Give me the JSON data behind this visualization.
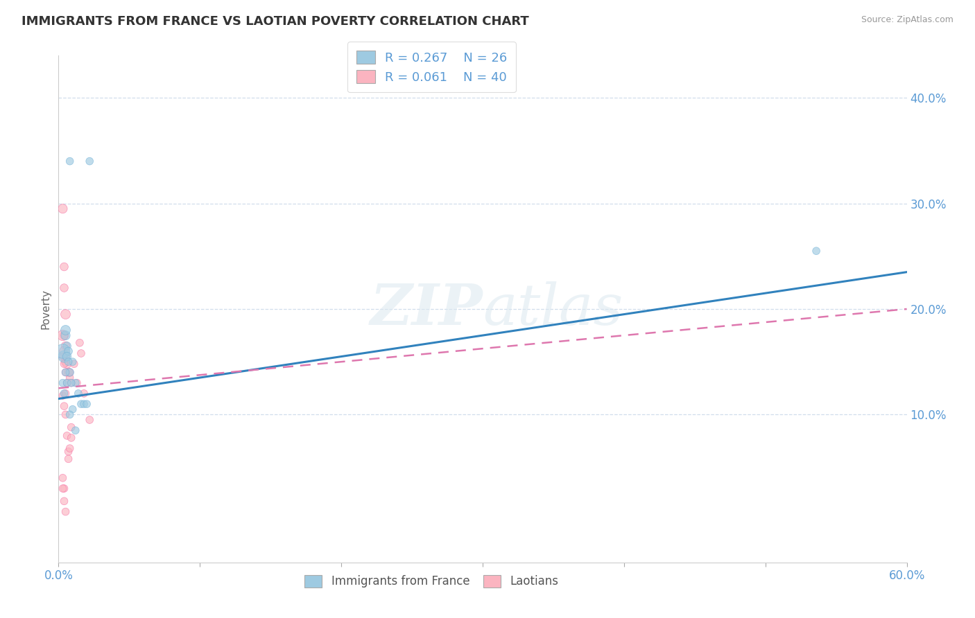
{
  "title": "IMMIGRANTS FROM FRANCE VS LAOTIAN POVERTY CORRELATION CHART",
  "source": "Source: ZipAtlas.com",
  "ylabel": "Poverty",
  "xlim": [
    0.0,
    0.6
  ],
  "ylim": [
    -0.04,
    0.44
  ],
  "yticks": [
    0.1,
    0.2,
    0.3,
    0.4
  ],
  "ytick_labels": [
    "10.0%",
    "20.0%",
    "30.0%",
    "40.0%"
  ],
  "xticks": [
    0.0,
    0.1,
    0.2,
    0.3,
    0.4,
    0.5,
    0.6
  ],
  "xtick_labels": [
    "0.0%",
    "",
    "",
    "",
    "",
    "",
    "60.0%"
  ],
  "color_france": "#9ecae1",
  "color_france_edge": "#6baed6",
  "color_laotian": "#fbb4c0",
  "color_laotian_edge": "#f768a1",
  "color_france_line": "#3182bd",
  "color_laotian_line": "#de77ae",
  "france_line_start_y": 0.115,
  "france_line_end_y": 0.235,
  "laotian_line_start_y": 0.125,
  "laotian_line_end_y": 0.2,
  "france_x": [
    0.008,
    0.022,
    0.004,
    0.006,
    0.003,
    0.005,
    0.007,
    0.005,
    0.006,
    0.008,
    0.01,
    0.012,
    0.014,
    0.016,
    0.018,
    0.02,
    0.003,
    0.004,
    0.006,
    0.007,
    0.009,
    0.01,
    0.008,
    0.536,
    0.012,
    0.005
  ],
  "france_y": [
    0.34,
    0.34,
    0.155,
    0.165,
    0.16,
    0.175,
    0.16,
    0.18,
    0.155,
    0.14,
    0.15,
    0.13,
    0.12,
    0.11,
    0.11,
    0.11,
    0.13,
    0.12,
    0.13,
    0.15,
    0.13,
    0.105,
    0.1,
    0.255,
    0.085,
    0.14
  ],
  "france_sizes": [
    60,
    60,
    150,
    70,
    220,
    90,
    70,
    100,
    80,
    70,
    60,
    60,
    60,
    60,
    60,
    60,
    60,
    60,
    60,
    60,
    60,
    60,
    60,
    60,
    60,
    60
  ],
  "laotian_x": [
    0.003,
    0.004,
    0.004,
    0.005,
    0.004,
    0.003,
    0.005,
    0.004,
    0.005,
    0.005,
    0.006,
    0.007,
    0.008,
    0.009,
    0.013,
    0.018,
    0.022,
    0.003,
    0.004,
    0.005,
    0.005,
    0.006,
    0.007,
    0.003,
    0.004,
    0.005,
    0.006,
    0.007,
    0.008,
    0.009,
    0.009,
    0.004,
    0.004,
    0.005,
    0.015,
    0.016,
    0.011,
    0.008,
    0.003,
    0.003
  ],
  "laotian_y": [
    0.295,
    0.24,
    0.22,
    0.195,
    0.175,
    0.175,
    0.165,
    0.16,
    0.155,
    0.15,
    0.148,
    0.14,
    0.135,
    0.13,
    0.13,
    0.12,
    0.095,
    0.118,
    0.108,
    0.12,
    0.1,
    0.08,
    0.065,
    0.155,
    0.148,
    0.14,
    0.13,
    0.058,
    0.068,
    0.078,
    0.088,
    0.03,
    0.018,
    0.008,
    0.168,
    0.158,
    0.148,
    0.14,
    0.03,
    0.04
  ],
  "laotian_sizes": [
    90,
    70,
    70,
    100,
    80,
    120,
    80,
    100,
    80,
    80,
    80,
    80,
    60,
    60,
    60,
    60,
    60,
    60,
    60,
    60,
    60,
    60,
    60,
    60,
    60,
    60,
    60,
    60,
    60,
    60,
    60,
    60,
    60,
    60,
    60,
    60,
    60,
    60,
    60,
    60
  ]
}
